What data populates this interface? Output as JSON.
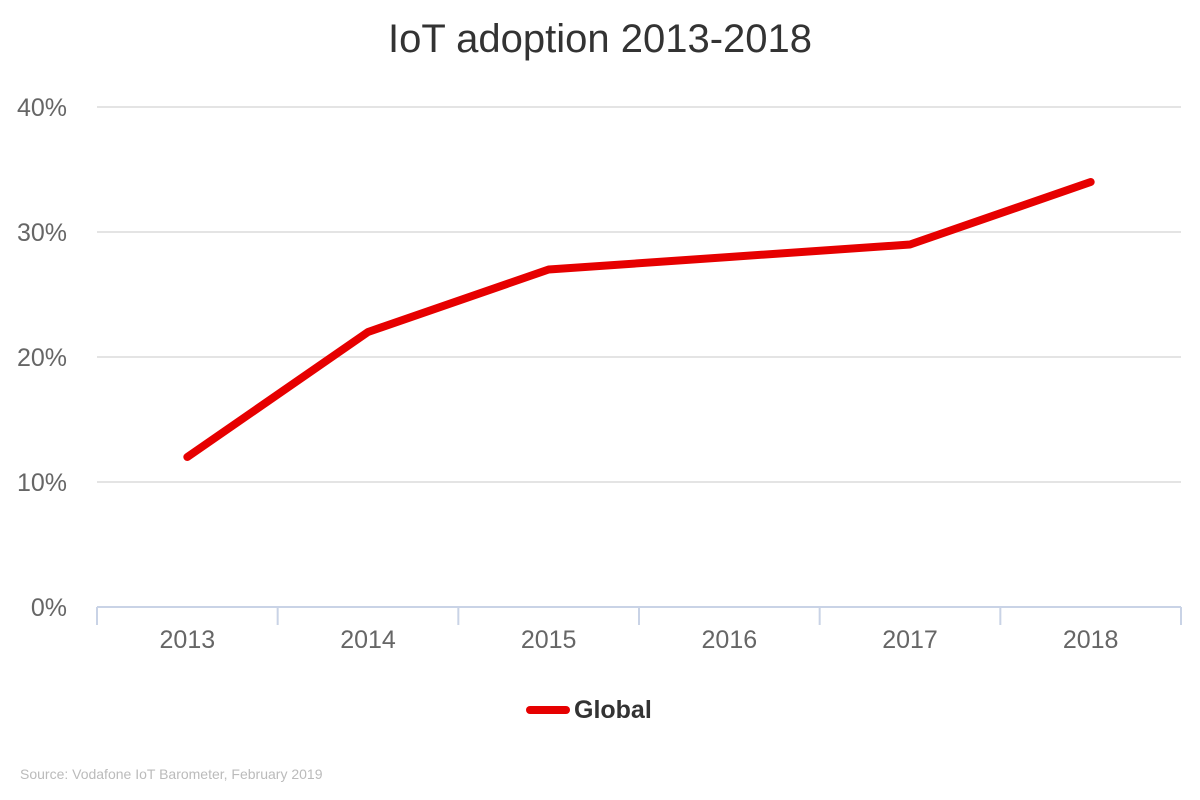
{
  "chart_data": {
    "type": "line",
    "title": "IoT adoption 2013-2018",
    "categories": [
      "2013",
      "2014",
      "2015",
      "2016",
      "2017",
      "2018"
    ],
    "series": [
      {
        "name": "Global",
        "values": [
          12,
          22,
          27,
          28,
          29,
          34
        ],
        "color": "#e60000"
      }
    ],
    "ylim": [
      0,
      40
    ],
    "yticks": [
      0,
      10,
      20,
      30,
      40
    ],
    "ytick_labels": [
      "0%",
      "10%",
      "20%",
      "30%",
      "40%"
    ],
    "xlabel": "",
    "ylabel": "",
    "grid": true,
    "legend": "bottom",
    "source": "Source: Vodafone IoT Barometer, February 2019"
  }
}
